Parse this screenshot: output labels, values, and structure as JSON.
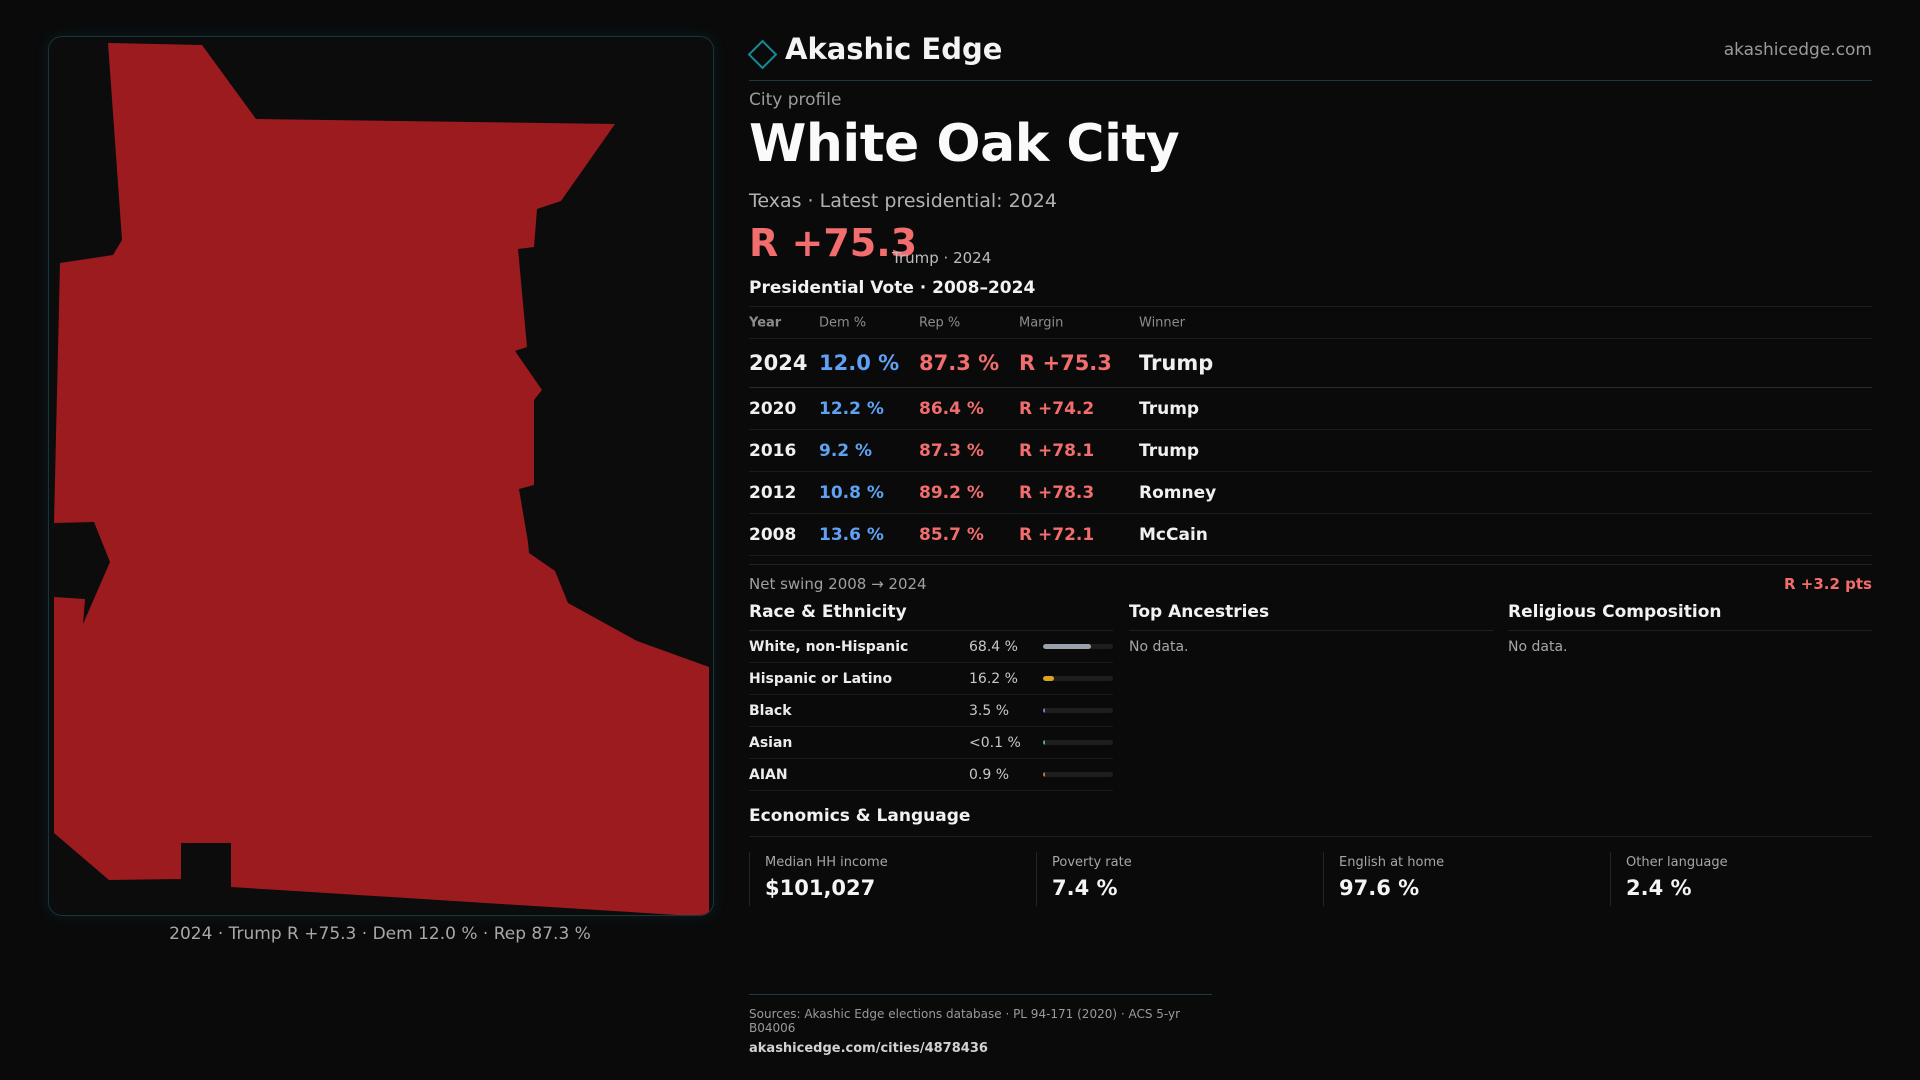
{
  "brand": {
    "name": "Akashic Edge",
    "url": "akashicedge.com"
  },
  "header": {
    "eyebrow": "City profile",
    "title": "White Oak City",
    "state_line": "Texas · Latest presidential: 2024",
    "margin": "R +75.3",
    "margin_note": "Trump · 2024"
  },
  "map": {
    "caption": "2024 · Trump R +75.3 · Dem 12.0 % · Rep 87.3 %",
    "fill_color": "#9b1b1f"
  },
  "presidential": {
    "title": "Presidential Vote · 2008–2024",
    "columns": {
      "year": "Year",
      "dem": "Dem %",
      "rep": "Rep %",
      "margin": "Margin",
      "winner": "Winner"
    },
    "rows": [
      {
        "year": "2024",
        "dem": "12.0 %",
        "rep": "87.3 %",
        "margin": "R +75.3",
        "winner": "Trump"
      },
      {
        "year": "2020",
        "dem": "12.2 %",
        "rep": "86.4 %",
        "margin": "R +74.2",
        "winner": "Trump"
      },
      {
        "year": "2016",
        "dem": "9.2 %",
        "rep": "87.3 %",
        "margin": "R +78.1",
        "winner": "Trump"
      },
      {
        "year": "2012",
        "dem": "10.8 %",
        "rep": "89.2 %",
        "margin": "R +78.3",
        "winner": "Romney"
      },
      {
        "year": "2008",
        "dem": "13.6 %",
        "rep": "85.7 %",
        "margin": "R +72.1",
        "winner": "McCain"
      }
    ],
    "swing_label": "Net swing 2008 → 2024",
    "swing_value": "R +3.2 pts"
  },
  "race": {
    "title": "Race & Ethnicity",
    "rows": [
      {
        "label": "White, non-Hispanic",
        "value": "68.4 %",
        "share": 0.684,
        "color": "#9aa2ad"
      },
      {
        "label": "Hispanic or Latino",
        "value": "16.2 %",
        "share": 0.162,
        "color": "#e0a21a"
      },
      {
        "label": "Black",
        "value": "3.5 %",
        "share": 0.035,
        "color": "#8a6fd6"
      },
      {
        "label": "Asian",
        "value": "<0.1 %",
        "share": 0.001,
        "color": "#3fb6a8"
      },
      {
        "label": "AIAN",
        "value": "0.9 %",
        "share": 0.009,
        "color": "#c77b3b"
      }
    ]
  },
  "ancestries": {
    "title": "Top Ancestries",
    "empty": "No data."
  },
  "religion": {
    "title": "Religious Composition",
    "empty": "No data."
  },
  "economics": {
    "title": "Economics & Language",
    "cards": [
      {
        "label": "Median HH income",
        "value": "$101,027"
      },
      {
        "label": "Poverty rate",
        "value": "7.4 %"
      },
      {
        "label": "English at home",
        "value": "97.6 %"
      },
      {
        "label": "Other language",
        "value": "2.4 %"
      }
    ]
  },
  "footer": {
    "sources": "Sources: Akashic Edge elections database · PL 94-171 (2020) · ACS 5-yr B04006",
    "link": "akashicedge.com/cities/4878436"
  }
}
